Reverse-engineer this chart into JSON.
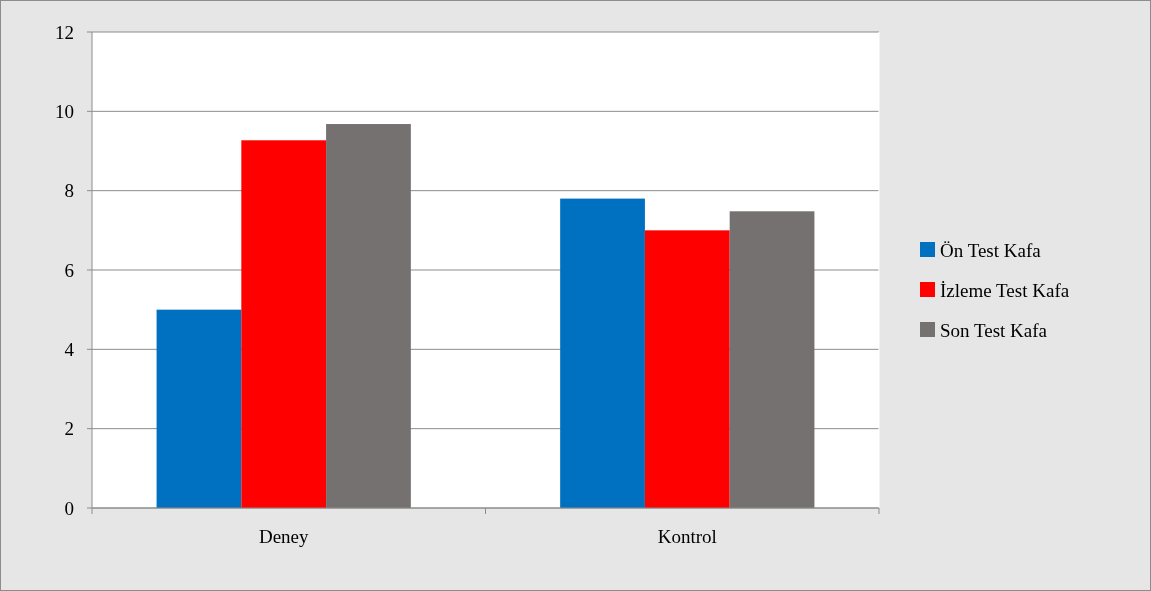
{
  "chart_data": {
    "type": "bar",
    "categories": [
      "Deney",
      "Kontrol"
    ],
    "series": [
      {
        "name": "Ön Test Kafa",
        "color": "#0070c0",
        "values": [
          5.0,
          7.8
        ]
      },
      {
        "name": "İzleme Test Kafa",
        "color": "#ff0000",
        "values": [
          9.27,
          7.0
        ]
      },
      {
        "name": "Son Test Kafa",
        "color": "#767171",
        "values": [
          9.68,
          7.48
        ]
      }
    ],
    "ylim": [
      0,
      12
    ],
    "yticks": [
      0,
      2,
      4,
      6,
      8,
      10,
      12
    ],
    "grid": "y",
    "legend": "right"
  }
}
